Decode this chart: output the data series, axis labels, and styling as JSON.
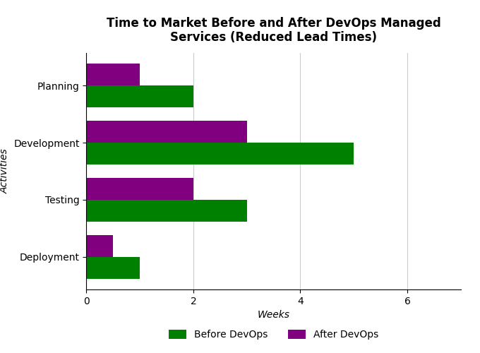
{
  "title": "Time to Market Before and After DevOps Managed\nServices (Reduced Lead Times)",
  "categories": [
    "Planning",
    "Development",
    "Testing",
    "Deployment"
  ],
  "before_devops": [
    2,
    5,
    3,
    1
  ],
  "after_devops": [
    1,
    3,
    2,
    0.5
  ],
  "before_color": "#008000",
  "after_color": "#800080",
  "xlabel": "Weeks",
  "ylabel": "Activities",
  "xlim": [
    0,
    7
  ],
  "xticks": [
    0,
    2,
    4,
    6
  ],
  "legend_labels": [
    "Before DevOps",
    "After DevOps"
  ],
  "bar_height": 0.38,
  "title_fontsize": 12,
  "axis_label_fontsize": 10,
  "tick_fontsize": 10,
  "legend_fontsize": 10,
  "background_color": "#ffffff"
}
